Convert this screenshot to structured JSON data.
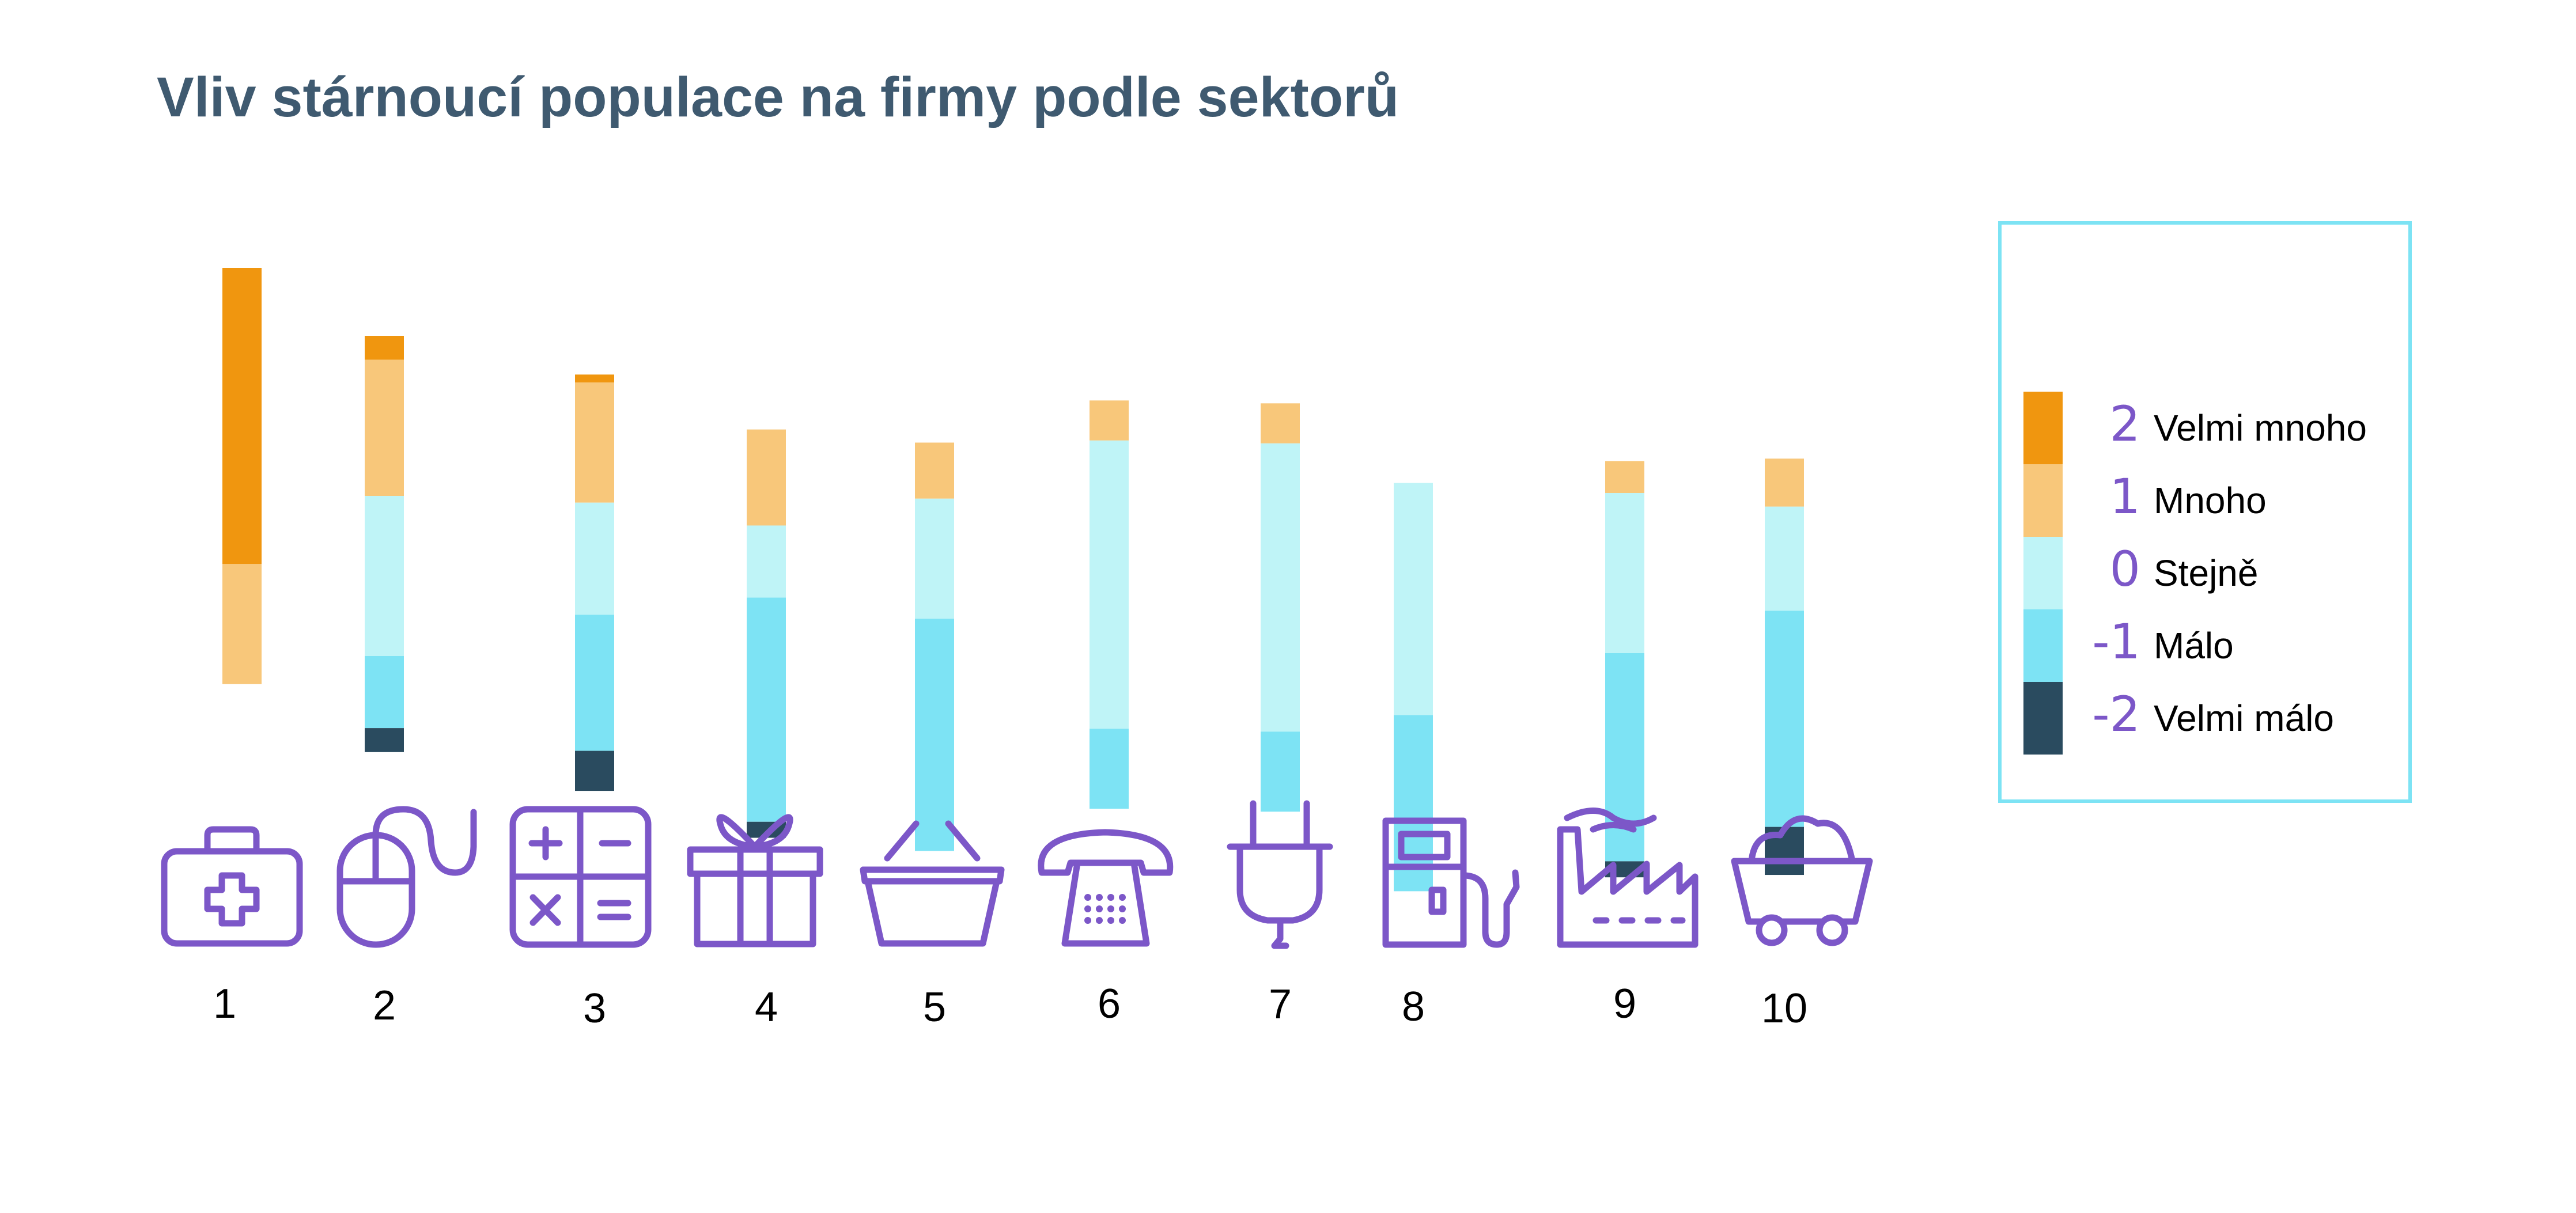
{
  "chart_data": {
    "type": "bar",
    "stacked": true,
    "title": "Vliv stárnoucí populace na firmy podle sektorů",
    "categories": [
      "1",
      "2",
      "3",
      "4",
      "5",
      "6",
      "7",
      "8",
      "9",
      "10"
    ],
    "icons": [
      "medical-kit-icon",
      "computer-mouse-icon",
      "calculator-icon",
      "gift-icon",
      "shopping-basket-icon",
      "telephone-icon",
      "plug-icon",
      "fuel-pump-icon",
      "factory-icon",
      "mine-cart-icon"
    ],
    "series": [
      {
        "name": "Velmi mnoho",
        "value": "2",
        "color": "#f0960f",
        "values": [
          37,
          3,
          1,
          0,
          0,
          0,
          0,
          0,
          0,
          0
        ]
      },
      {
        "name": "Mnoho",
        "value": "1",
        "color": "#f8c77a",
        "values": [
          15,
          17,
          15,
          12,
          7,
          5,
          5,
          0,
          4,
          6
        ]
      },
      {
        "name": "Stejně",
        "value": "0",
        "color": "#bff4f7",
        "values": [
          0,
          20,
          14,
          9,
          15,
          36,
          36,
          29,
          20,
          13
        ]
      },
      {
        "name": "Málo",
        "value": "-1",
        "color": "#7de3f4",
        "values": [
          0,
          9,
          17,
          28,
          29,
          10,
          10,
          22,
          26,
          27
        ]
      },
      {
        "name": "Velmi málo",
        "value": "-2",
        "color": "#2a4b5f",
        "values": [
          0,
          3,
          5,
          2,
          0,
          0,
          0,
          0,
          2,
          6
        ]
      }
    ],
    "legend": {
      "position": "right",
      "items": [
        {
          "value": "2",
          "label": "Velmi mnoho",
          "color": "#f0960f"
        },
        {
          "value": "1",
          "label": "Mnoho",
          "color": "#f8c77a"
        },
        {
          "value": "0",
          "label": "Stejně",
          "color": "#bff4f7"
        },
        {
          "value": "-1",
          "label": "Málo",
          "color": "#7de3f4"
        },
        {
          "value": "-2",
          "label": "Velmi málo",
          "color": "#2a4b5f"
        }
      ]
    },
    "grid": false,
    "icon_color": "#7c57c8",
    "legend_border_color": "#7de3f4"
  }
}
